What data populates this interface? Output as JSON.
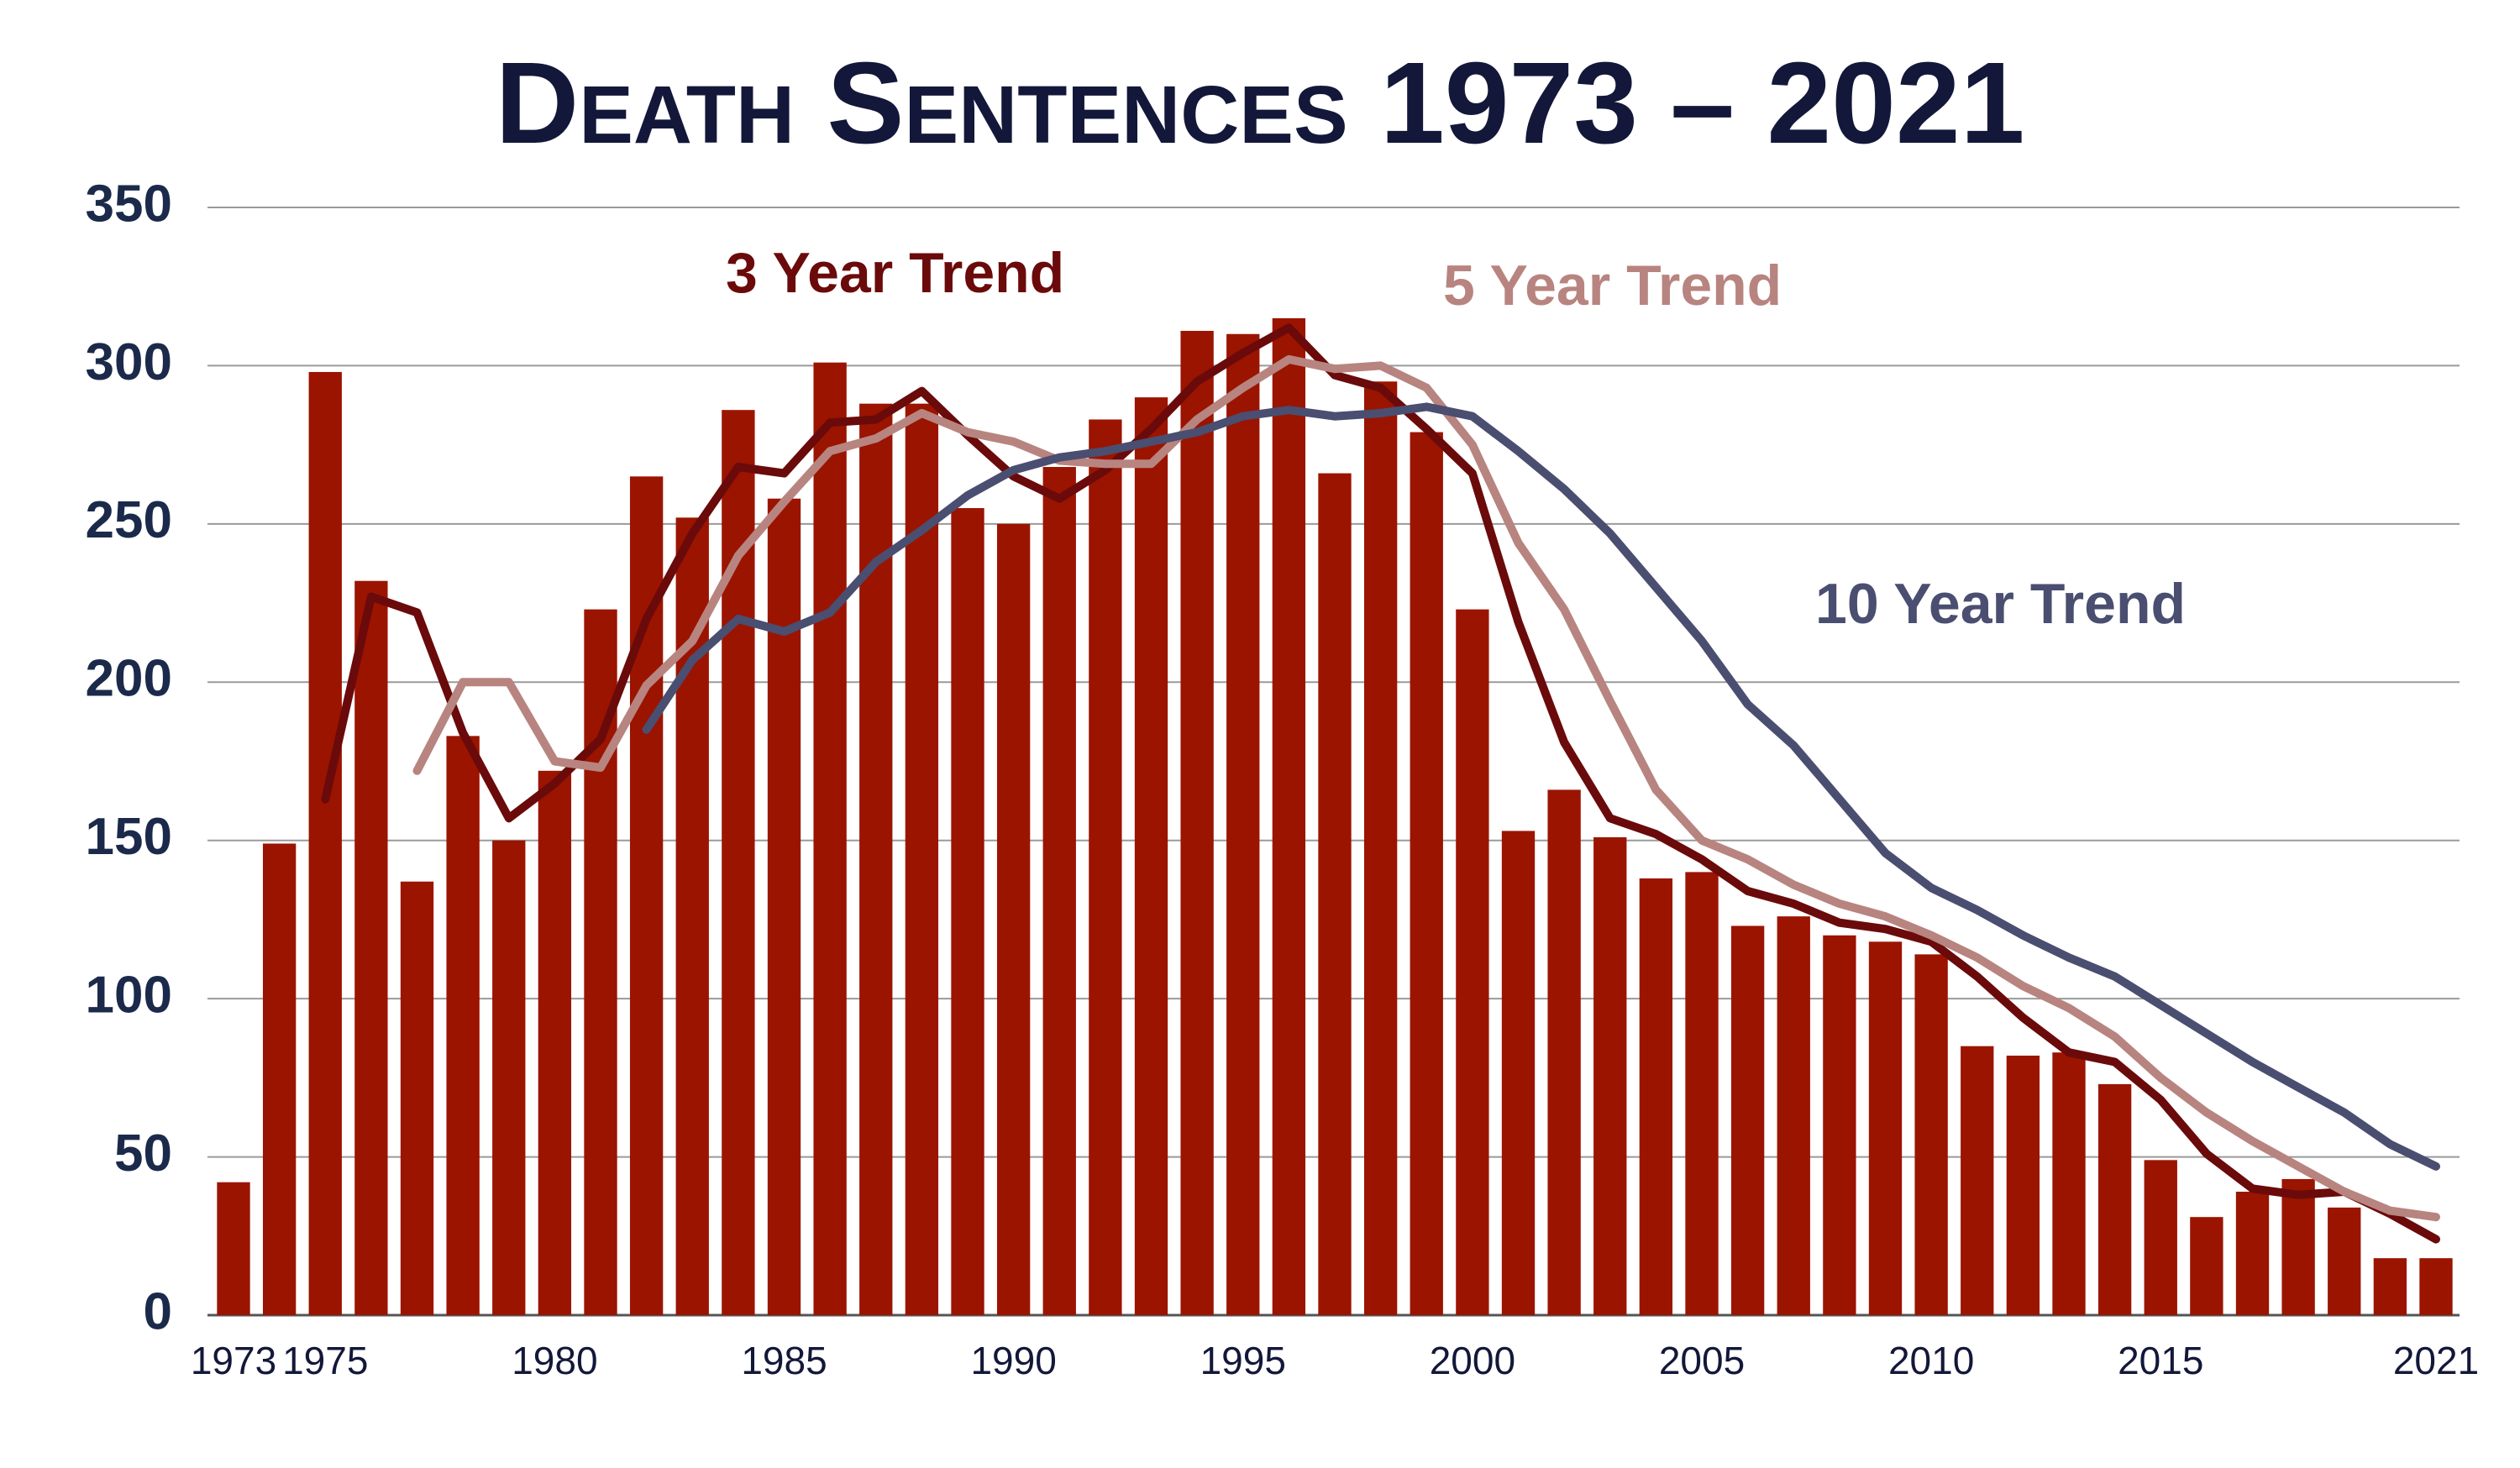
{
  "chart_data": {
    "type": "bar_line",
    "title": "Death Sentences 1973 – 2021",
    "categories": [
      "1973",
      null,
      "1975",
      null,
      null,
      null,
      null,
      "1980",
      null,
      null,
      null,
      null,
      "1985",
      null,
      null,
      null,
      null,
      "1990",
      null,
      null,
      null,
      null,
      "1995",
      null,
      null,
      null,
      null,
      "2000",
      null,
      null,
      null,
      null,
      "2005",
      null,
      null,
      null,
      null,
      "2010",
      null,
      null,
      null,
      null,
      "2015",
      null,
      null,
      null,
      null,
      null,
      "2021"
    ],
    "values": [
      42,
      149,
      298,
      232,
      137,
      183,
      150,
      172,
      223,
      265,
      252,
      286,
      258,
      301,
      288,
      288,
      255,
      250,
      268,
      283,
      290,
      311,
      310,
      315,
      266,
      295,
      279,
      223,
      153,
      166,
      151,
      138,
      140,
      123,
      126,
      120,
      118,
      114,
      85,
      82,
      83,
      73,
      49,
      31,
      39,
      43,
      34,
      18,
      18
    ],
    "color": "#9b1400",
    "series": [
      {
        "name": "3 Year Trend",
        "color": "#6b0a0a",
        "values": [
          null,
          null,
          163,
          227,
          222,
          184,
          157,
          168,
          182,
          220,
          247,
          268,
          266,
          282,
          283,
          292,
          278,
          265,
          258,
          267,
          280,
          295,
          304,
          312,
          297,
          293,
          280,
          266,
          219,
          181,
          157,
          152,
          144,
          134,
          130,
          124,
          122,
          118,
          107,
          94,
          83,
          80,
          68,
          51,
          40,
          38,
          39,
          32,
          24
        ]
      },
      {
        "name": "5 Year Trend",
        "color": "#b88480",
        "values": [
          null,
          null,
          null,
          null,
          172,
          200,
          200,
          175,
          173,
          199,
          213,
          240,
          257,
          273,
          277,
          285,
          279,
          276,
          270,
          269,
          269,
          283,
          293,
          302,
          299,
          300,
          293,
          275,
          244,
          223,
          194,
          166,
          150,
          144,
          136,
          130,
          126,
          120,
          113,
          104,
          97,
          88,
          75,
          64,
          55,
          47,
          39,
          33,
          31
        ]
      },
      {
        "name": "10 Year Trend",
        "color": "#4a4e70",
        "values": [
          null,
          null,
          null,
          null,
          null,
          null,
          null,
          null,
          null,
          185,
          207,
          220,
          216,
          222,
          238,
          248,
          259,
          267,
          271,
          273,
          276,
          279,
          284,
          286,
          284,
          285,
          287,
          284,
          273,
          261,
          247,
          230,
          213,
          193,
          180,
          163,
          146,
          135,
          128,
          120,
          113,
          107,
          98,
          89,
          80,
          72,
          64,
          54,
          47
        ]
      }
    ],
    "ylim": [
      0,
      350
    ],
    "yticks": [
      0,
      50,
      100,
      150,
      200,
      250,
      300,
      350
    ],
    "grid": true
  }
}
